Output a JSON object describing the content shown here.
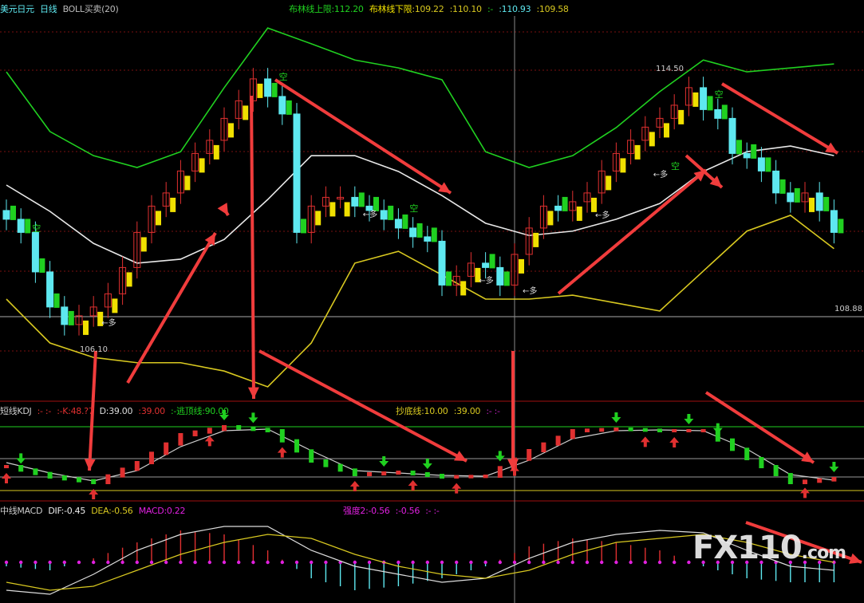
{
  "header": {
    "symbol": "美元日元",
    "period": "日线",
    "indicator": "BOLL买卖(20)",
    "upper_label": "布林线上限",
    "upper_value": ":112.20",
    "lower_label": "布林线下限",
    "lower_value": ":109.22",
    "v1": ":110.10",
    "sep": ":-",
    "v2": ":110.93",
    "v3": ":109.58"
  },
  "kdj_header": {
    "name": "短线KDJ",
    "sep": ":-  :-",
    "k": ":-K:48.?7",
    "d": "D:39.00",
    "d2": ":39.00",
    "top_label": ":-逃顶线:90.00",
    "bottom_label": "抄底线:10.00",
    "bottom_v2": ":39.00",
    "tail": ":-  :-"
  },
  "macd_header": {
    "name": "中线MACD",
    "dif": "DIF:-0.45",
    "dea": "DEA:-0.56",
    "macd": "MACD:0.22",
    "strength": "强度2:-0.56",
    "strength2": ":-0.56",
    "tail": ":-  :-"
  },
  "price_labels": {
    "high": "114.50",
    "low": "106.10",
    "current": "108.88"
  },
  "signal_labels": {
    "short": "空",
    "long": "多",
    "long_arrow": "←多"
  },
  "watermark": {
    "main": "FX110",
    "suffix": ".com"
  },
  "colors": {
    "up": "#e03030",
    "down": "#5ee8f0",
    "buy_signal": "#f0e000",
    "sell_signal": "#20d020",
    "upper_band": "#20d020",
    "mid_band": "#e8e8e8",
    "lower_band": "#d8c820",
    "annotation_arrow": "#f03c3c",
    "zero_line": "#e020e0",
    "grid": "#7a1010"
  },
  "chart_data": [
    {
      "type": "candlestick",
      "title": "美元日元 日线 BOLL买卖(20)",
      "close": [
        111.1,
        110.8,
        109.9,
        109.1,
        108.7,
        108.9,
        109.1,
        109.4,
        110.0,
        110.8,
        111.4,
        111.7,
        112.2,
        112.6,
        112.9,
        113.4,
        113.8,
        114.3,
        113.9,
        113.5,
        110.8,
        111.4,
        111.6,
        111.6,
        111.4,
        111.3,
        111.1,
        110.9,
        110.7,
        110.6,
        109.6,
        109.8,
        110.1,
        110.0,
        109.6,
        110.3,
        110.9,
        111.4,
        111.3,
        111.5,
        111.7,
        112.2,
        112.6,
        112.9,
        113.2,
        113.4,
        113.7,
        114.1,
        113.6,
        113.4,
        112.6,
        112.5,
        112.2,
        111.7,
        111.5,
        111.7,
        111.3,
        110.8
      ],
      "bands_sample_every": 3,
      "upper_band": [
        114.46,
        113.1,
        112.55,
        112.28,
        112.64,
        114.1,
        115.46,
        115.1,
        114.73,
        114.55,
        114.28,
        112.64,
        112.28,
        112.55,
        113.19,
        114.01,
        114.73,
        114.46,
        114.55,
        114.64
      ],
      "mid_band": [
        111.88,
        111.28,
        110.55,
        110.1,
        110.19,
        110.64,
        111.55,
        112.55,
        112.55,
        112.19,
        111.64,
        111.01,
        110.73,
        110.83,
        111.1,
        111.46,
        112.19,
        112.64,
        112.77,
        112.55
      ],
      "lower_band": [
        109.28,
        108.28,
        107.95,
        107.83,
        107.83,
        107.64,
        107.28,
        108.28,
        110.1,
        110.37,
        109.83,
        109.28,
        109.28,
        109.37,
        109.19,
        109.01,
        109.92,
        110.83,
        111.19,
        110.43
      ],
      "yref": 108.88
    },
    {
      "type": "line",
      "title": "短线KDJ",
      "sample_every": 3,
      "levels": [
        90,
        10
      ],
      "K": [
        40,
        27,
        20,
        45,
        80,
        90,
        85,
        47,
        30,
        33,
        27,
        28,
        60,
        85,
        87,
        85,
        85,
        50,
        20,
        25
      ],
      "D": [
        45,
        32,
        22,
        35,
        65,
        85,
        87,
        60,
        35,
        32,
        29,
        28,
        48,
        75,
        85,
        86,
        85,
        62,
        30,
        23
      ],
      "buy_arrows_at": [
        0,
        6,
        14,
        19,
        24,
        28,
        31,
        35,
        44,
        46,
        55
      ],
      "sell_arrows_at": [
        1,
        15,
        17,
        26,
        29,
        34,
        42,
        47,
        49,
        57
      ]
    },
    {
      "type": "bar",
      "title": "中线MACD",
      "sample_every": 3,
      "MACD": [
        -0.1,
        -0.2,
        0.1,
        0.5,
        0.8,
        0.7,
        0.3,
        -0.4,
        -0.7,
        -0.6,
        -0.4,
        -0.1,
        0.4,
        0.6,
        0.5,
        0.3,
        -0.1,
        -0.4,
        -0.5,
        -0.5
      ],
      "DIF": [
        -0.7,
        -0.8,
        -0.3,
        0.3,
        0.7,
        0.9,
        0.9,
        0.3,
        -0.1,
        -0.3,
        -0.5,
        -0.4,
        0.1,
        0.5,
        0.7,
        0.8,
        0.74,
        0.3,
        -0.1,
        -0.2
      ],
      "DEA": [
        -0.5,
        -0.7,
        -0.6,
        -0.2,
        0.2,
        0.5,
        0.7,
        0.6,
        0.2,
        -0.1,
        -0.3,
        -0.4,
        -0.2,
        0.2,
        0.5,
        0.6,
        0.7,
        0.5,
        0.2,
        0.0
      ]
    }
  ]
}
